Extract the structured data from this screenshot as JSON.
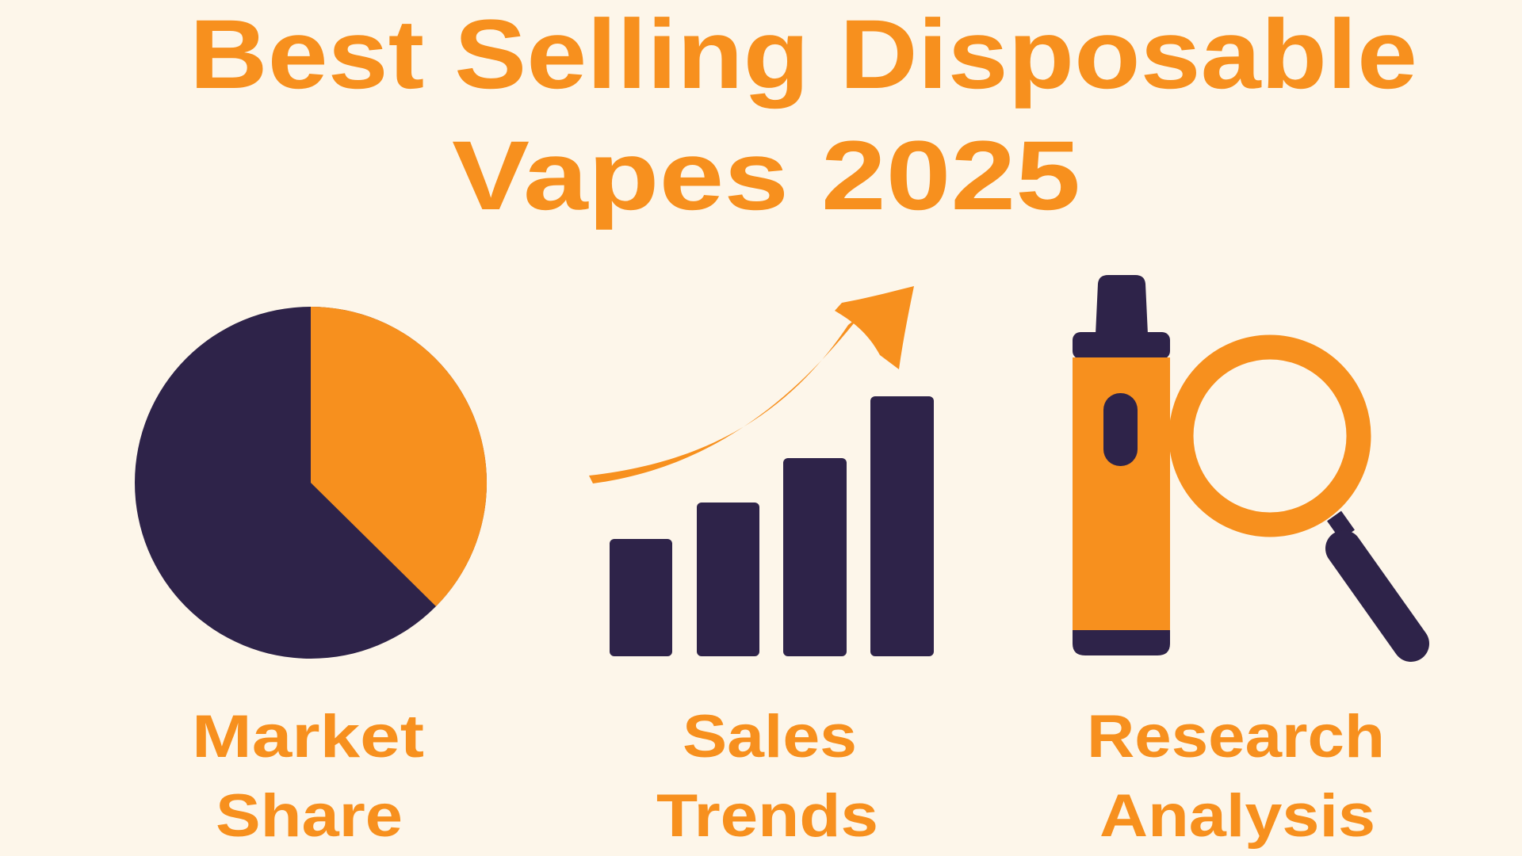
{
  "title_lines": [
    "Best Selling Disposable",
    "Vapes 2025"
  ],
  "panels": [
    {
      "label_lines": [
        "Market",
        "Share"
      ]
    },
    {
      "label_lines": [
        "Sales",
        "Trends"
      ]
    },
    {
      "label_lines": [
        "Research",
        "Analysis"
      ]
    }
  ]
}
